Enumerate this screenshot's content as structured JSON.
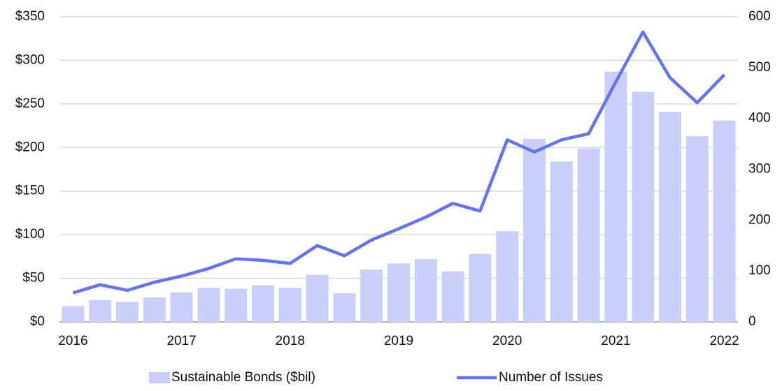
{
  "chart_data": {
    "type": "bar_line",
    "categories": [
      "2016",
      null,
      null,
      null,
      "2017",
      null,
      null,
      null,
      "2018",
      null,
      null,
      null,
      "2019",
      null,
      null,
      null,
      "2020",
      null,
      null,
      null,
      "2021",
      null,
      null,
      null,
      "2022"
    ],
    "series": [
      {
        "name": "Sustainable Bonds ($bil)",
        "color": "#c9cefa",
        "type": "bar",
        "values": [
          18,
          25,
          23,
          28,
          34,
          39,
          38,
          42,
          39,
          54,
          33,
          60,
          67,
          72,
          58,
          78,
          104,
          210,
          184,
          199,
          287,
          264,
          241,
          213,
          231
        ]
      },
      {
        "name": "Number of Issues",
        "color": "#6373f5",
        "type": "line",
        "axis": "y2",
        "values": [
          57,
          73,
          62,
          78,
          90,
          105,
          124,
          121,
          115,
          150,
          130,
          161,
          183,
          206,
          233,
          218,
          358,
          334,
          358,
          370,
          472,
          570,
          480,
          431,
          486
        ]
      }
    ],
    "ylim": [
      0,
      350
    ],
    "yticks": [
      {
        "value": 0,
        "label": "$0"
      },
      {
        "value": 50,
        "label": "$50"
      },
      {
        "value": 100,
        "label": "$100"
      },
      {
        "value": 150,
        "label": "$150"
      },
      {
        "value": 200,
        "label": "$200"
      },
      {
        "value": 250,
        "label": "$250"
      },
      {
        "value": 300,
        "label": "$300"
      },
      {
        "value": 350,
        "label": "$350"
      }
    ],
    "y2lim": [
      0,
      600
    ],
    "y2ticks": [
      0,
      100,
      200,
      300,
      400,
      500,
      600
    ],
    "grid": true,
    "legend": "bottom"
  }
}
